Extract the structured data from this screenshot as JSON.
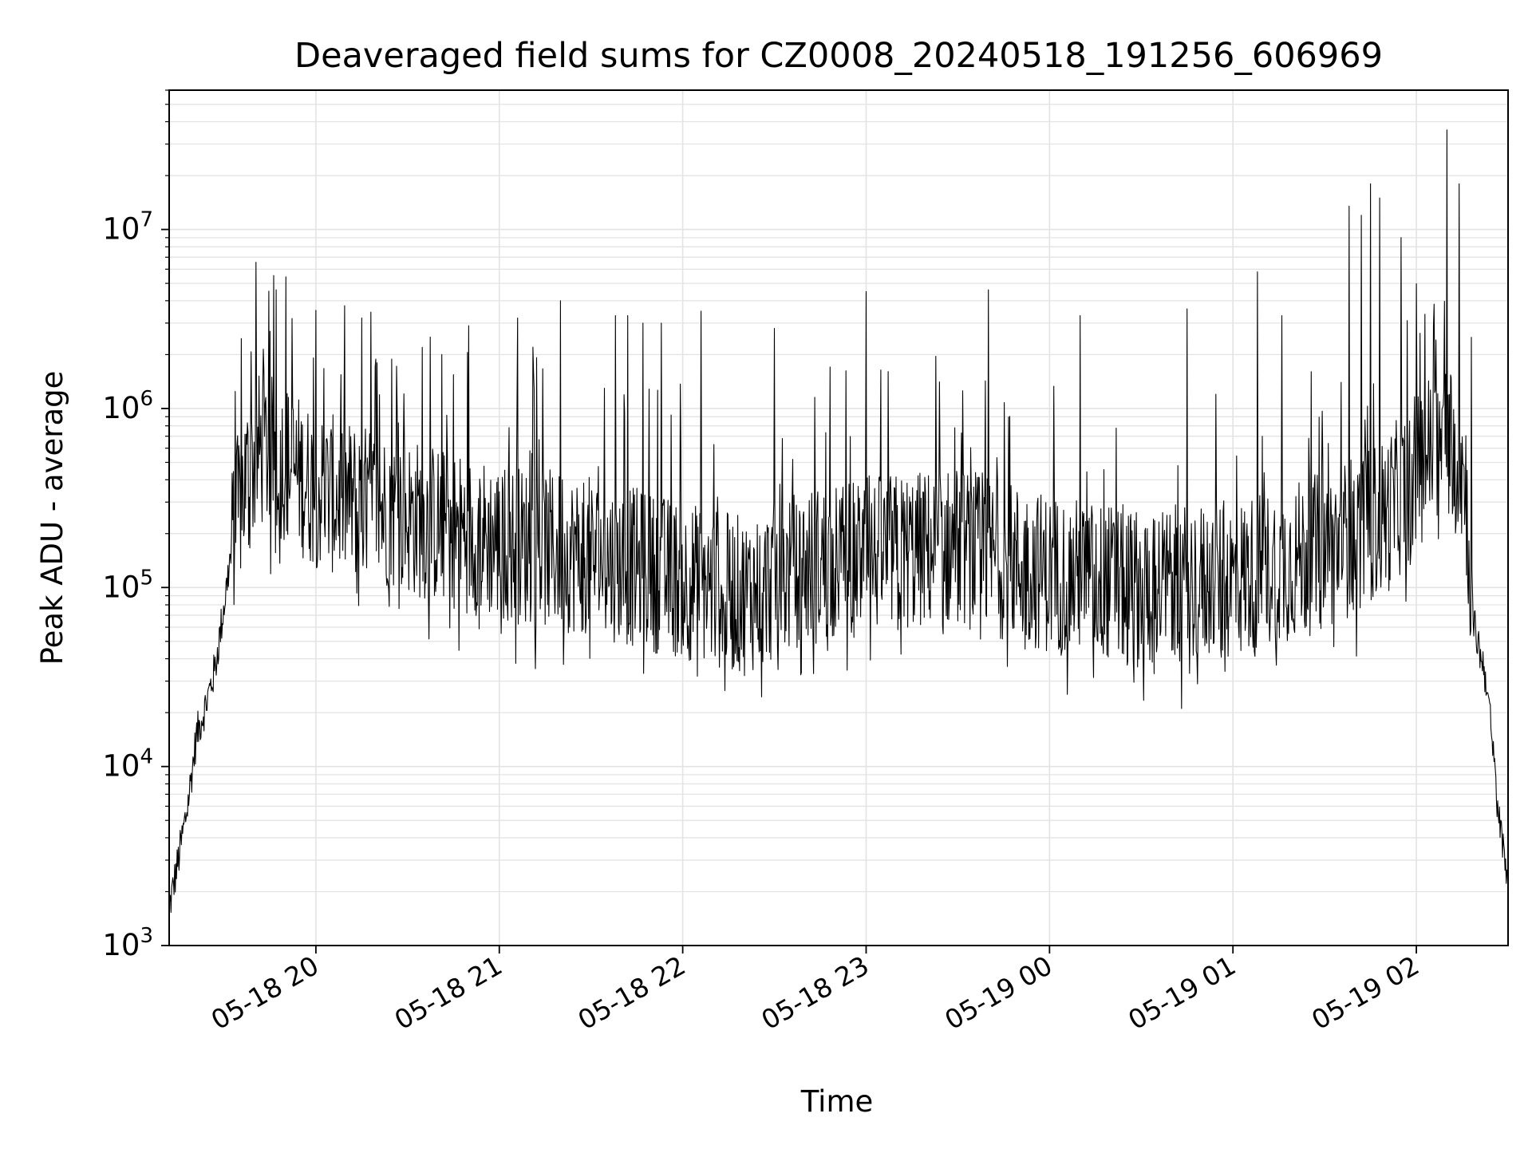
{
  "chart_data": {
    "type": "line",
    "title": "Deaveraged field sums for CZ0008_20240518_191256_606969",
    "xlabel": "Time",
    "ylabel": "Peak ADU - average",
    "yscale": "log",
    "ylim": [
      1000,
      60000000
    ],
    "xlim": [
      "2024-05-18 19:12",
      "2024-05-19 02:30"
    ],
    "grid": true,
    "x_ticks": [
      {
        "label": "05-18 20",
        "value": "2024-05-18 20:00"
      },
      {
        "label": "05-18 21",
        "value": "2024-05-18 21:00"
      },
      {
        "label": "05-18 22",
        "value": "2024-05-18 22:00"
      },
      {
        "label": "05-18 23",
        "value": "2024-05-18 23:00"
      },
      {
        "label": "05-19 00",
        "value": "2024-05-19 00:00"
      },
      {
        "label": "05-19 01",
        "value": "2024-05-19 01:00"
      },
      {
        "label": "05-19 02",
        "value": "2024-05-19 02:00"
      }
    ],
    "y_ticks": [
      {
        "base": "10",
        "exp": "3",
        "value": 1000
      },
      {
        "base": "10",
        "exp": "4",
        "value": 10000
      },
      {
        "base": "10",
        "exp": "5",
        "value": 100000
      },
      {
        "base": "10",
        "exp": "6",
        "value": 1000000
      },
      {
        "base": "10",
        "exp": "7",
        "value": 10000000
      }
    ],
    "series": [
      {
        "color": "#000000",
        "baseline_profile": [
          [
            "2024-05-18 19:12",
            1600
          ],
          [
            "2024-05-18 19:15",
            3000
          ],
          [
            "2024-05-18 19:18",
            6000
          ],
          [
            "2024-05-18 19:21",
            15000
          ],
          [
            "2024-05-18 19:24",
            22000
          ],
          [
            "2024-05-18 19:27",
            35000
          ],
          [
            "2024-05-18 19:30",
            80000
          ],
          [
            "2024-05-18 19:33",
            200000
          ],
          [
            "2024-05-18 19:37",
            400000
          ],
          [
            "2024-05-18 19:42",
            600000
          ],
          [
            "2024-05-18 19:50",
            500000
          ],
          [
            "2024-05-18 20:00",
            350000
          ],
          [
            "2024-05-18 20:30",
            250000
          ],
          [
            "2024-05-18 21:00",
            180000
          ],
          [
            "2024-05-18 21:30",
            150000
          ],
          [
            "2024-05-18 22:00",
            110000
          ],
          [
            "2024-05-18 22:20",
            90000
          ],
          [
            "2024-05-18 22:40",
            130000
          ],
          [
            "2024-05-18 23:00",
            150000
          ],
          [
            "2024-05-18 23:30",
            170000
          ],
          [
            "2024-05-19 00:00",
            120000
          ],
          [
            "2024-05-19 00:30",
            100000
          ],
          [
            "2024-05-19 01:00",
            110000
          ],
          [
            "2024-05-19 01:30",
            160000
          ],
          [
            "2024-05-19 01:50",
            250000
          ],
          [
            "2024-05-19 02:05",
            600000
          ],
          [
            "2024-05-19 02:12",
            700000
          ],
          [
            "2024-05-19 02:16",
            400000
          ],
          [
            "2024-05-19 02:19",
            60000
          ],
          [
            "2024-05-19 02:23",
            30000
          ],
          [
            "2024-05-19 02:27",
            5000
          ],
          [
            "2024-05-19 02:30",
            2400
          ]
        ],
        "spikes": [
          [
            "2024-05-18 19:47",
            4600000
          ],
          [
            "2024-05-18 19:45",
            2700000
          ],
          [
            "2024-05-18 20:15",
            3200000
          ],
          [
            "2024-05-18 20:20",
            1800000
          ],
          [
            "2024-05-18 20:50",
            2900000
          ],
          [
            "2024-05-18 21:06",
            3200000
          ],
          [
            "2024-05-18 21:11",
            2200000
          ],
          [
            "2024-05-18 21:20",
            4000000
          ],
          [
            "2024-05-18 21:38",
            3300000
          ],
          [
            "2024-05-18 21:42",
            3300000
          ],
          [
            "2024-05-18 21:47",
            3000000
          ],
          [
            "2024-05-18 21:53",
            3000000
          ],
          [
            "2024-05-18 22:06",
            3500000
          ],
          [
            "2024-05-18 22:30",
            2800000
          ],
          [
            "2024-05-18 23:00",
            4500000
          ],
          [
            "2024-05-18 23:40",
            4600000
          ],
          [
            "2024-05-19 00:10",
            3300000
          ],
          [
            "2024-05-19 00:45",
            3600000
          ],
          [
            "2024-05-19 01:08",
            5800000
          ],
          [
            "2024-05-19 01:16",
            3300000
          ],
          [
            "2024-05-19 01:38",
            13500000
          ],
          [
            "2024-05-19 01:42",
            12000000
          ],
          [
            "2024-05-19 01:45",
            18000000
          ],
          [
            "2024-05-19 01:48",
            15000000
          ],
          [
            "2024-05-19 01:55",
            9000000
          ],
          [
            "2024-05-19 02:10",
            36000000
          ],
          [
            "2024-05-19 02:14",
            18000000
          ],
          [
            "2024-05-19 02:18",
            2500000
          ]
        ]
      }
    ]
  }
}
